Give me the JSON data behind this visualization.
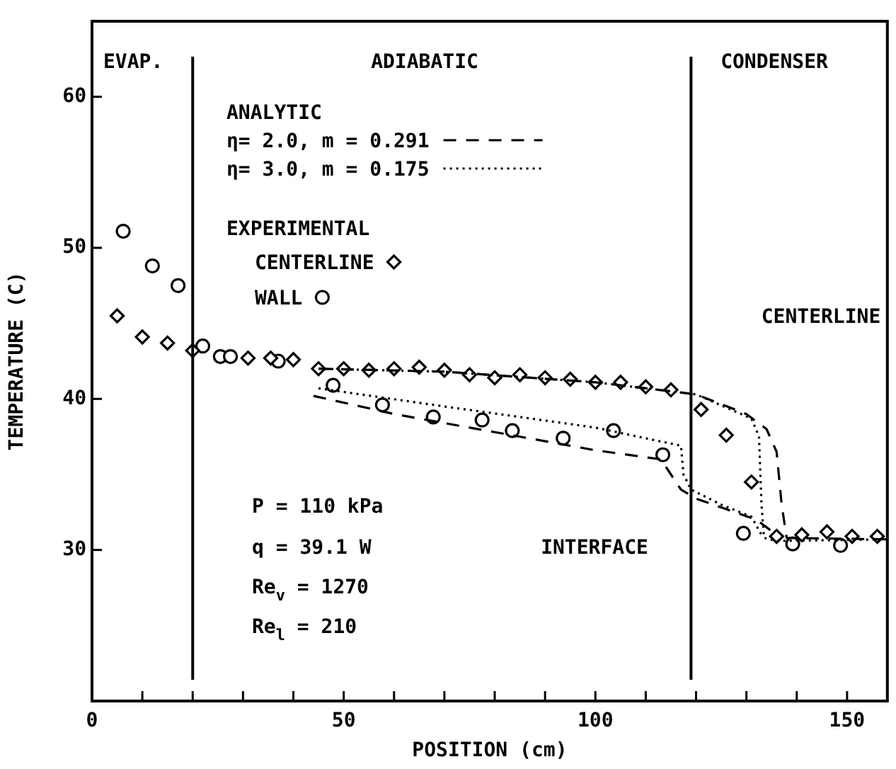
{
  "chart_data": {
    "type": "scatter",
    "xlabel": "POSITION (cm)",
    "ylabel": "TEMPERATURE (C)",
    "xlim": [
      0,
      158
    ],
    "ylim": [
      20,
      65
    ],
    "xticks": [
      0,
      {
        "value": 10,
        "label": null
      },
      {
        "value": 20,
        "label": null
      },
      {
        "value": 30,
        "label": null
      },
      {
        "value": 40,
        "label": null
      },
      50,
      {
        "value": 60,
        "label": null
      },
      {
        "value": 70,
        "label": null
      },
      {
        "value": 80,
        "label": null
      },
      {
        "value": 90,
        "label": null
      },
      100,
      {
        "value": 110,
        "label": null
      },
      {
        "value": 120,
        "label": null
      },
      {
        "value": 130,
        "label": null
      },
      {
        "value": 140,
        "label": null
      },
      150
    ],
    "yticks": [
      30,
      40,
      50,
      60
    ],
    "grid": false,
    "legend": "top left",
    "series": [
      {
        "name": "η= 2.0, m = 0.291",
        "type": "line",
        "line_style": "dashed",
        "marker": "none",
        "color": "#000000",
        "x": [
          45,
          70,
          100,
          120,
          130,
          134,
          136,
          137,
          138,
          158
        ],
        "values": [
          42.0,
          41.8,
          41.1,
          40.3,
          39.0,
          38.0,
          36.5,
          33.0,
          30.8,
          30.7
        ]
      },
      {
        "name": "η= 3.0, m = 0.175",
        "type": "line",
        "line_style": "dotted",
        "marker": "none",
        "color": "#000000",
        "x": [
          45,
          70,
          100,
          120,
          131,
          132.5,
          133,
          133.5,
          136,
          158
        ],
        "values": [
          42.0,
          41.8,
          41.1,
          40.3,
          38.7,
          37.5,
          33.0,
          30.8,
          30.6,
          30.7
        ]
      },
      {
        "type": "line",
        "line_style": "dashed",
        "marker": "none",
        "color": "#000000",
        "x": [
          44,
          60,
          80,
          100,
          113,
          115,
          117,
          120,
          126,
          132,
          136
        ],
        "values": [
          40.2,
          39.0,
          37.8,
          36.6,
          36.0,
          35.0,
          34.0,
          33.4,
          32.7,
          32.0,
          31.0
        ]
      },
      {
        "type": "line",
        "line_style": "dotted",
        "marker": "none",
        "color": "#000000",
        "x": [
          45,
          70,
          100,
          117,
          117.5,
          119,
          125,
          131,
          133
        ],
        "values": [
          40.7,
          39.5,
          38.1,
          36.9,
          35.0,
          34.0,
          33.0,
          32.2,
          31.0
        ]
      },
      {
        "name": "CENTERLINE",
        "type": "scatter",
        "marker": "diamond",
        "color": "#000000",
        "x": [
          5,
          10,
          15,
          20,
          31,
          35.5,
          40,
          45,
          50,
          55,
          60,
          65,
          70,
          75,
          80,
          85,
          90,
          95,
          100,
          105,
          110,
          115,
          121,
          126,
          131,
          136,
          141,
          146,
          151,
          156
        ],
        "values": [
          45.5,
          44.1,
          43.7,
          43.2,
          42.7,
          42.7,
          42.6,
          42.0,
          42.0,
          41.9,
          42.0,
          42.1,
          41.9,
          41.6,
          41.4,
          41.6,
          41.4,
          41.3,
          41.1,
          41.1,
          40.8,
          40.6,
          39.3,
          37.6,
          34.5,
          30.9,
          31.0,
          31.2,
          30.9,
          30.9
        ]
      },
      {
        "name": "WALL",
        "type": "scatter",
        "marker": "circle",
        "color": "#000000",
        "x": [
          6.2,
          12,
          17.1,
          22,
          25.5,
          27.5,
          37,
          47.9,
          57.7,
          67.8,
          77.5,
          83.5,
          93.6,
          103.6,
          113.4,
          129.4,
          139.2,
          148.7
        ],
        "values": [
          51.1,
          48.8,
          47.5,
          43.5,
          42.8,
          42.8,
          42.5,
          40.9,
          39.6,
          38.8,
          38.6,
          37.9,
          37.4,
          37.9,
          36.3,
          31.1,
          30.4,
          30.3
        ]
      }
    ],
    "ref_lines": [
      {
        "axis": "x",
        "value": 20,
        "color": "#000000"
      },
      {
        "axis": "x",
        "value": 119,
        "color": "#000000"
      }
    ],
    "annotations": [
      "EVAP.",
      "ADIABATIC",
      "CONDENSER",
      "ANALYTIC",
      "EXPERIMENTAL",
      "CENTERLINE",
      "INTERFACE",
      "P = 110 kPa",
      "q = 39.1 W",
      "Re$_{v}$ = 1270",
      "Re$_{l}$ = 210"
    ]
  }
}
